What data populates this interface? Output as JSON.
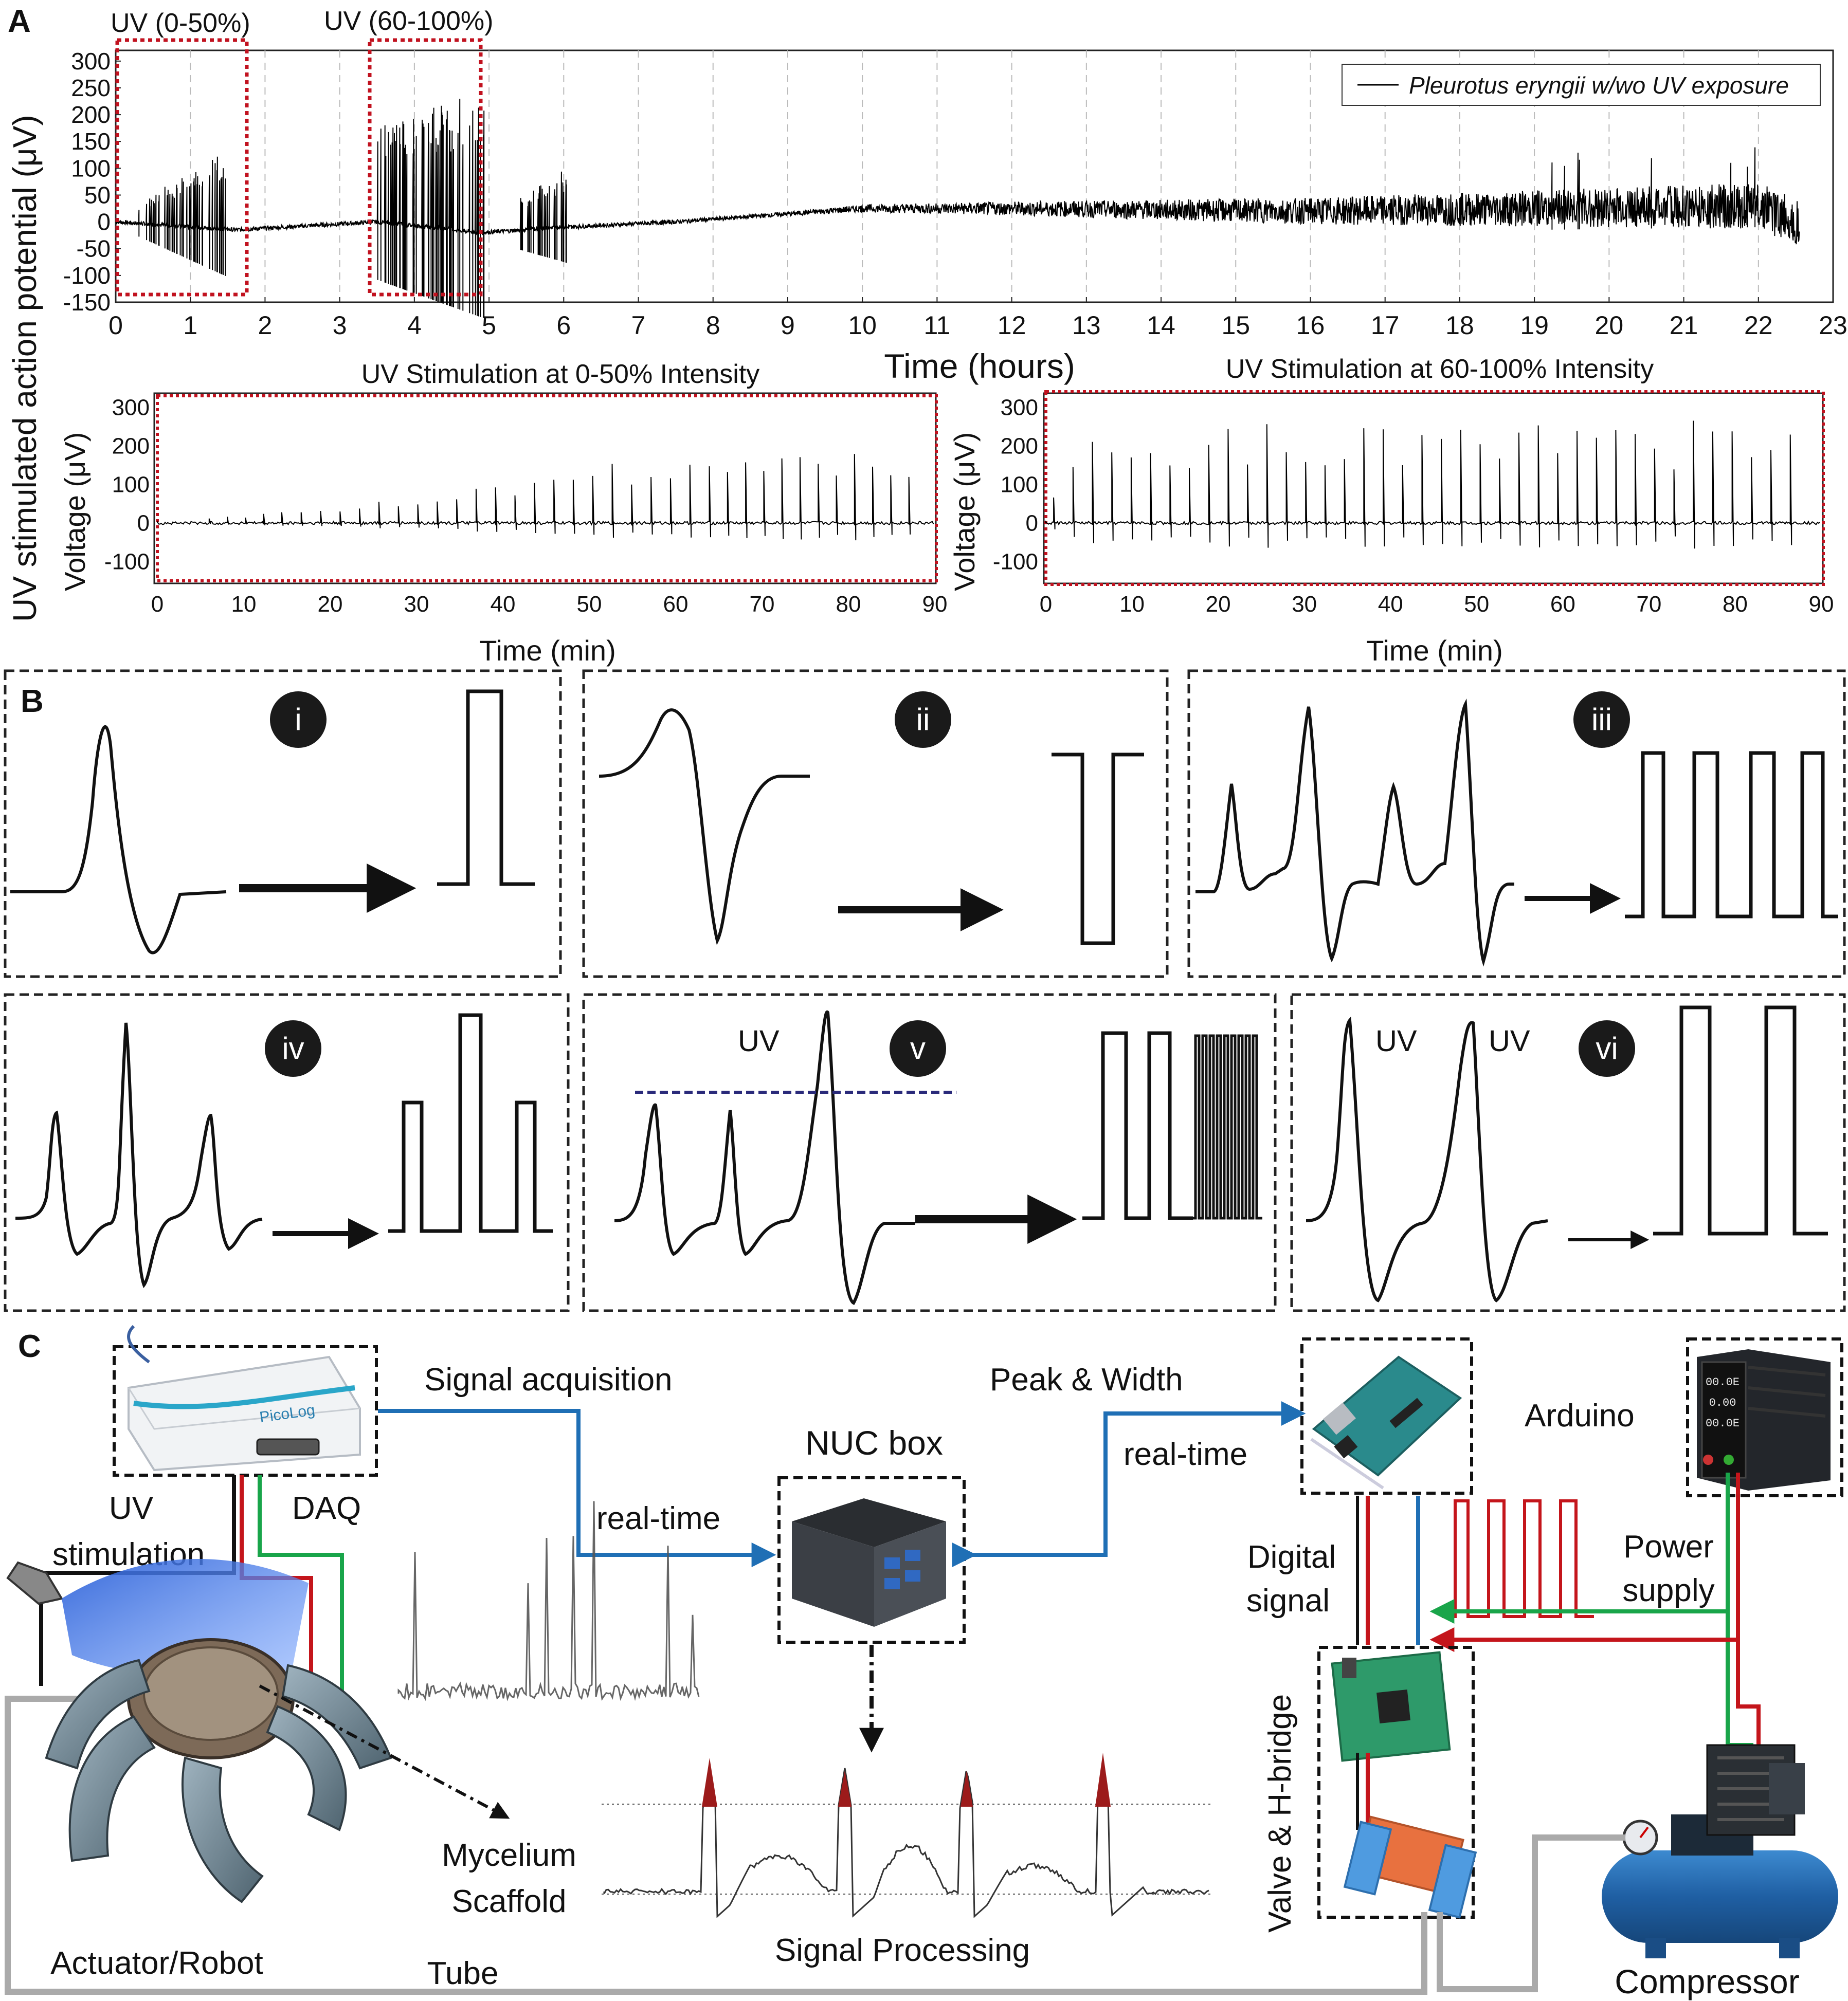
{
  "panel_labels": {
    "a": "A",
    "b": "B",
    "c": "C"
  },
  "panelA": {
    "ylabel": "UV stimulated action potential (μV)",
    "legend": "Pleurotus eryngii w/wo UV exposure",
    "box1_label": "UV (0-50%)",
    "box2_label": "UV (60-100%)",
    "xlabel": "Time (hours)",
    "xticks": [
      "0",
      "1",
      "2",
      "3",
      "4",
      "5",
      "6",
      "7",
      "8",
      "9",
      "10",
      "11",
      "12",
      "13",
      "14",
      "15",
      "16",
      "17",
      "18",
      "19",
      "20",
      "21",
      "22",
      "23"
    ],
    "yticks": [
      "300",
      "250",
      "200",
      "150",
      "100",
      "50",
      "0",
      "-50",
      "-100",
      "-150"
    ],
    "inset1": {
      "title": "UV Stimulation at 0-50% Intensity",
      "ylabel": "Voltage (μV)",
      "xlabel": "Time (min)",
      "yticks": [
        "300",
        "200",
        "100",
        "0",
        "-100"
      ],
      "xticks": [
        "0",
        "10",
        "20",
        "30",
        "40",
        "50",
        "60",
        "70",
        "80",
        "90"
      ]
    },
    "inset2": {
      "title": "UV Stimulation at 60-100% Intensity",
      "ylabel": "Voltage (μV)",
      "xlabel": "Time (min)",
      "yticks": [
        "300",
        "200",
        "100",
        "0",
        "-100"
      ],
      "xticks": [
        "0",
        "10",
        "20",
        "30",
        "40",
        "50",
        "60",
        "70",
        "80",
        "90"
      ]
    }
  },
  "chart_data": [
    {
      "type": "line",
      "xlabel": "Time (hours)",
      "ylabel": "UV stimulated action potential (μV)",
      "xlim": [
        0,
        23
      ],
      "ylim": [
        -150,
        320
      ],
      "series": [
        {
          "name": "Pleurotus eryngii w/wo UV exposure",
          "x": [
            0,
            1.6,
            3.5,
            4.9,
            6,
            7.5,
            9,
            10,
            12,
            16,
            19,
            22,
            22.5
          ],
          "y": [
            0,
            -15,
            0,
            -20,
            -10,
            0,
            15,
            25,
            25,
            20,
            25,
            30,
            0
          ]
        }
      ]
    },
    {
      "type": "line",
      "title": "UV Stimulation at 0-50% Intensity",
      "xlabel": "Time (min)",
      "ylabel": "Voltage (μV)",
      "xlim": [
        0,
        90
      ],
      "ylim": [
        -150,
        330
      ],
      "series": [
        {
          "x": [
            10,
            20,
            38,
            50,
            69,
            84
          ],
          "y": [
            20,
            40,
            110,
            150,
            210,
            200
          ]
        }
      ]
    },
    {
      "type": "line",
      "title": "UV Stimulation at 60-100% Intensity",
      "xlabel": "Time (min)",
      "ylabel": "Voltage (μV)",
      "xlim": [
        0,
        90
      ],
      "ylim": [
        -150,
        330
      ],
      "series": [
        {
          "x": [
            2,
            10,
            20,
            32,
            50,
            60,
            70,
            80
          ],
          "y": [
            200,
            230,
            250,
            290,
            290,
            260,
            280,
            270
          ]
        }
      ]
    }
  ],
  "panelB": {
    "badges": [
      "i",
      "ii",
      "iii",
      "iv",
      "v",
      "vi"
    ],
    "uv_labels": [
      "UV",
      "UV",
      "UV"
    ]
  },
  "panelC": {
    "signal_acquisition": "Signal acquisition",
    "peak_width": "Peak & Width",
    "realtime_1": "real-time",
    "realtime_2": "real-time",
    "nuc_box": "NUC box",
    "arduino": "Arduino",
    "uv_stimulation": "UV\nstimulation",
    "uv_word": "UV",
    "stimulation_word": "stimulation",
    "daq": "DAQ",
    "digital_signal_1": "Digital",
    "digital_signal_2": "signal",
    "power_supply_1": "Power",
    "power_supply_2": "supply",
    "valve_hbridge": "Valve & H-bridge",
    "mycelium_1": "Mycelium",
    "mycelium_2": "Scaffold",
    "actuator": "Actuator/Robot",
    "tube": "Tube",
    "signal_processing": "Signal Processing",
    "compressor": "Compressor",
    "daq_device_brand": "PicoLog",
    "psu_readouts": [
      "00.0E",
      "0.00",
      "00.0E"
    ]
  }
}
